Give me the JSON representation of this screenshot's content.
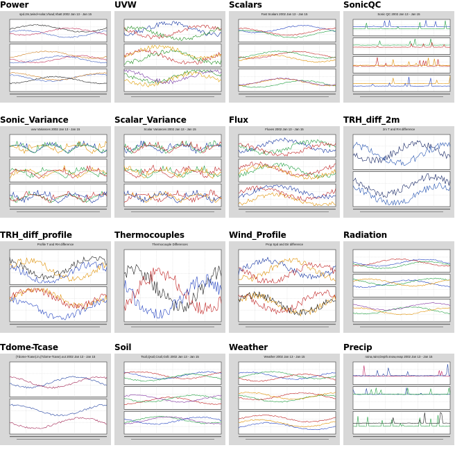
{
  "plots": [
    {
      "title": "Power",
      "caption": "spd.2m,twind+solar,Vload,Vbatt 2002 Jan 13 - Jan 15",
      "panels": 3,
      "style": "lines",
      "colors": [
        "#1a1a1a",
        "#c0305a",
        "#4060c0",
        "#d08020"
      ]
    },
    {
      "title": "UVW",
      "caption": "",
      "panels": 3,
      "style": "noisy",
      "colors": [
        "#1030a0",
        "#c02020",
        "#209020",
        "#e0a000",
        "#7030a0"
      ]
    },
    {
      "title": "Scalars",
      "caption": "Fast Scalars 2002 Jan 13 - Jan 15",
      "panels": 3,
      "style": "lines",
      "colors": [
        "#2040c0",
        "#c02020",
        "#20a040",
        "#e09000",
        "#8030a0"
      ]
    },
    {
      "title": "SonicQC",
      "caption": "Sonic QC 2002 Jan 13 - Jan 15",
      "panels": 4,
      "style": "spikes",
      "colors": [
        "#2040c0",
        "#20a040",
        "#c02020",
        "#e09000"
      ]
    },
    {
      "title": "Sonic_Variance",
      "caption": "uvw Variances 2002 Jan 13 - Jan 15",
      "panels": 3,
      "style": "filled",
      "colors": [
        "#1030a0",
        "#e09000",
        "#20a040",
        "#c02020"
      ]
    },
    {
      "title": "Scalar_Variance",
      "caption": "Scalar Variances 2002 Jan 13 - Jan 15",
      "panels": 3,
      "style": "filled",
      "colors": [
        "#1030a0",
        "#20a040",
        "#c02020",
        "#e09000"
      ]
    },
    {
      "title": "Flux",
      "caption": "Fluxes 2002 Jan 13 - Jan 15",
      "panels": 3,
      "style": "noisy",
      "colors": [
        "#1030a0",
        "#20a040",
        "#c02020",
        "#e09000"
      ]
    },
    {
      "title": "TRH_diff_2m",
      "caption": "2m T and RH difference",
      "panels": 2,
      "style": "noisy",
      "colors": [
        "#102060",
        "#2050b0"
      ]
    },
    {
      "title": "TRH_diff_profile",
      "caption": "Profile T and RH difference",
      "panels": 2,
      "style": "noisy",
      "colors": [
        "#1a1a1a",
        "#e09000",
        "#2040c0",
        "#c02020"
      ]
    },
    {
      "title": "Thermocouples",
      "caption": "Thermocouple Differences",
      "panels": 1,
      "style": "noisy",
      "colors": [
        "#1a1a1a",
        "#c02020",
        "#2040c0",
        "#e09000",
        "#20a040"
      ]
    },
    {
      "title": "Wind_Profile",
      "caption": "Prop Spd and Dir difference",
      "panels": 2,
      "style": "noisy",
      "colors": [
        "#1030a0",
        "#e09000",
        "#c02020",
        "#1a1a1a"
      ]
    },
    {
      "title": "Radiation",
      "caption": "",
      "panels": 3,
      "style": "lines",
      "colors": [
        "#c02020",
        "#2040c0",
        "#20a040",
        "#e09000",
        "#8030a0"
      ]
    },
    {
      "title": "Tdome-Tcase",
      "caption": "(Tdome-Tcase).in,(Tdome-Tcase).out 2002 Jan 13 - Jan 15",
      "panels": 2,
      "style": "lines",
      "colors": [
        "#2040a0",
        "#a02050"
      ]
    },
    {
      "title": "Soil",
      "caption": "Tsoil,Qsoil,Csoil,Gsfc 2002 Jan 13 - Jan 15",
      "panels": 3,
      "style": "lines",
      "colors": [
        "#2040c0",
        "#c02020",
        "#20a040",
        "#8030a0"
      ]
    },
    {
      "title": "Weather",
      "caption": "Weather 2002 Jan 13 - Jan 15",
      "panels": 3,
      "style": "lines",
      "colors": [
        "#2040c0",
        "#20a040",
        "#c02020",
        "#e09000"
      ]
    },
    {
      "title": "Precip",
      "caption": "raina,rainr,Depth.snow,evap 2002 Jan 13 - Jan 15",
      "panels": 3,
      "style": "spikes",
      "colors": [
        "#c02060",
        "#2040a0",
        "#20a040",
        "#1a1a1a"
      ]
    }
  ]
}
